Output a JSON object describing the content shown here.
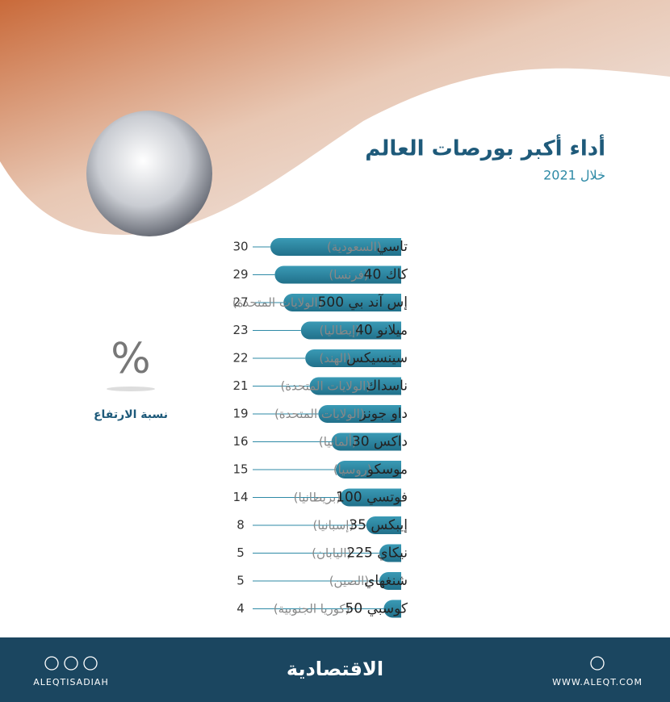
{
  "chart_data": {
    "type": "bar",
    "title": "أداء أكبر بورصات العالم",
    "subtitle": "خلال 2021",
    "unit_symbol": "%",
    "value_axis_label": "نسبة الارتفاع",
    "categories": [
      "تاسي",
      "كاك 40",
      "إس آند بي 500",
      "ميلانو 40",
      "سينسيكس",
      "ناسداك",
      "داو جونز",
      "داكس 30",
      "موسكو",
      "فوتسي 100",
      "إيبكس 35",
      "نيكاي 225",
      "شنغهاي",
      "كوسبي 50"
    ],
    "countries": [
      "(السعودية)",
      "(فرنسا)",
      "(الولايات المتحدة)",
      "(إيطاليا)",
      "(الهند)",
      "(الولايات المتحدة)",
      "(الولايات المتحدة)",
      "(ألمانيا)",
      "(روسيا)",
      "(بريطانيا)",
      "(إسبانيا)",
      "(اليابان)",
      "(الصين)",
      "(كوريا الجنوبية)"
    ],
    "values": [
      30,
      29,
      27,
      23,
      22,
      21,
      19,
      16,
      15,
      14,
      8,
      5,
      5,
      4
    ],
    "color": "#2e8aa6"
  },
  "footer": {
    "brand": "الاقتصادية",
    "handle": "ALEQTISADIAH",
    "website": "WWW.ALEQT.COM"
  }
}
